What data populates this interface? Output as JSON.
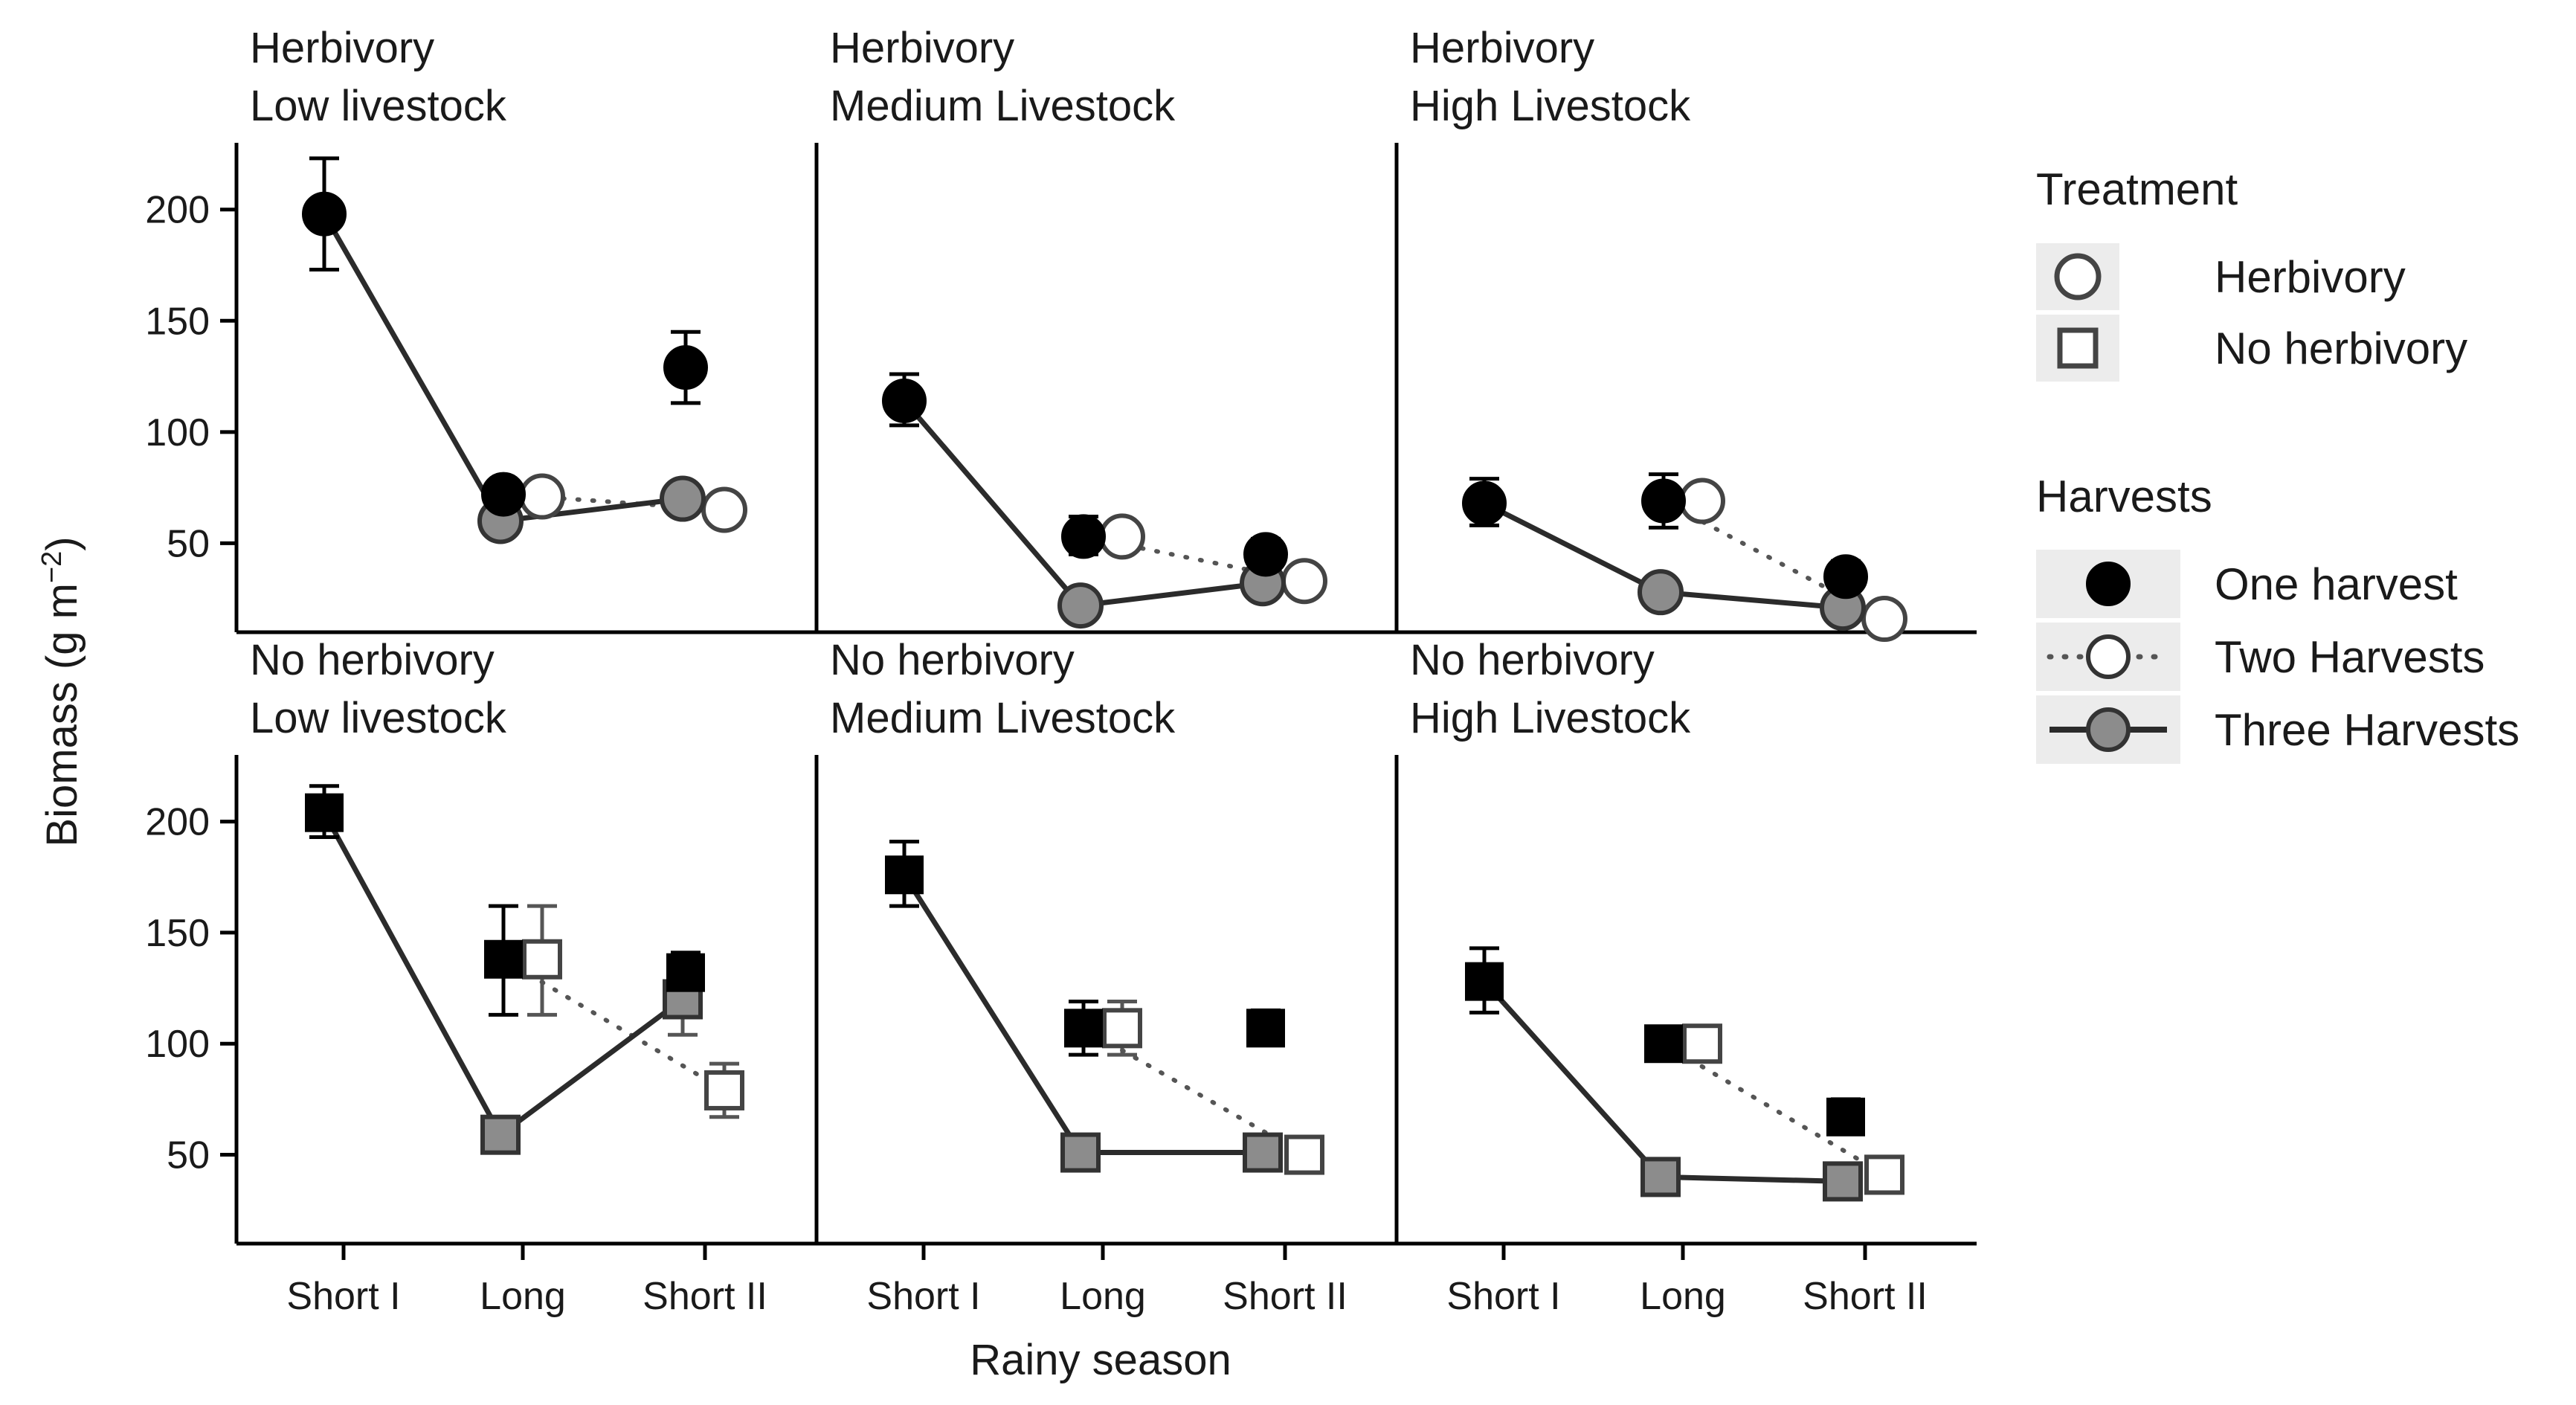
{
  "figure": {
    "ylabel_main": "Biomass (g m",
    "ylabel_sup": "−2",
    "ylabel_close": ")",
    "xlabel": "Rainy season"
  },
  "legend": {
    "treatment_title": "Treatment",
    "treatment_items": [
      {
        "label": "Herbivory",
        "shape": "circle"
      },
      {
        "label": "No herbivory",
        "shape": "square"
      }
    ],
    "harvests_title": "Harvests",
    "harvest_items": [
      {
        "label": "One harvest",
        "fill": "#000000",
        "line": "none"
      },
      {
        "label": "Two Harvests",
        "fill": "#ffffff",
        "line": "dotted"
      },
      {
        "label": "Three Harvests",
        "fill": "#8c8c8c",
        "line": "solid"
      }
    ]
  },
  "chart_data": {
    "type": "scatter",
    "facet_rows": [
      {
        "name": "Herbivory",
        "shape": "circle"
      },
      {
        "name": "No herbivory",
        "shape": "square"
      }
    ],
    "facet_cols": [
      "Low livestock",
      "Medium Livestock",
      "High Livestock"
    ],
    "x_categories": [
      "Short I",
      "Long",
      "Short II"
    ],
    "y_ticks": [
      50,
      100,
      150,
      200
    ],
    "ylim": [
      10,
      230
    ],
    "colors": {
      "one": "#000000",
      "two": "#ffffff",
      "three": "#8c8c8c",
      "line": "#2b2b2b"
    },
    "panels": [
      {
        "row": 0,
        "col": 0,
        "strip": [
          "Herbivory",
          "Low livestock"
        ],
        "one": [
          [
            0,
            198,
            173,
            223
          ],
          [
            1,
            72,
            66,
            78
          ],
          [
            2,
            129,
            113,
            145
          ]
        ],
        "two": [
          [
            1,
            71,
            null,
            null
          ],
          [
            2,
            65,
            null,
            null
          ]
        ],
        "three": [
          [
            1,
            60,
            null,
            null
          ],
          [
            2,
            70,
            null,
            null
          ]
        ]
      },
      {
        "row": 0,
        "col": 1,
        "strip": [
          "Herbivory",
          "Medium Livestock"
        ],
        "one": [
          [
            0,
            114,
            103,
            126
          ],
          [
            1,
            53,
            45,
            62
          ],
          [
            2,
            45,
            38,
            52
          ]
        ],
        "two": [
          [
            1,
            53,
            null,
            null
          ],
          [
            2,
            33,
            null,
            null
          ]
        ],
        "three": [
          [
            1,
            22,
            null,
            null
          ],
          [
            2,
            32,
            null,
            null
          ]
        ]
      },
      {
        "row": 0,
        "col": 2,
        "strip": [
          "Herbivory",
          "High Livestock"
        ],
        "one": [
          [
            0,
            68,
            58,
            79
          ],
          [
            1,
            69,
            57,
            81
          ],
          [
            2,
            35,
            28,
            42
          ]
        ],
        "two": [
          [
            1,
            69,
            null,
            null
          ],
          [
            2,
            16,
            null,
            null
          ]
        ],
        "three": [
          [
            1,
            28,
            null,
            null
          ],
          [
            2,
            21,
            null,
            null
          ]
        ]
      },
      {
        "row": 1,
        "col": 0,
        "strip": [
          "No herbivory",
          "Low livestock"
        ],
        "one": [
          [
            0,
            204,
            193,
            216
          ],
          [
            1,
            138,
            113,
            162
          ],
          [
            2,
            132,
            123,
            141
          ]
        ],
        "two": [
          [
            1,
            138,
            113,
            162
          ],
          [
            2,
            79,
            67,
            91
          ]
        ],
        "three": [
          [
            1,
            59,
            52,
            66
          ],
          [
            2,
            120,
            104,
            136
          ]
        ]
      },
      {
        "row": 1,
        "col": 1,
        "strip": [
          "No herbivory",
          "Medium Livestock"
        ],
        "one": [
          [
            0,
            176,
            162,
            191
          ],
          [
            1,
            107,
            95,
            119
          ],
          [
            2,
            107,
            100,
            115
          ]
        ],
        "two": [
          [
            1,
            107,
            95,
            119
          ],
          [
            2,
            50,
            null,
            null
          ]
        ],
        "three": [
          [
            1,
            51,
            null,
            null
          ],
          [
            2,
            51,
            null,
            null
          ]
        ]
      },
      {
        "row": 1,
        "col": 2,
        "strip": [
          "No herbivory",
          "High Livestock"
        ],
        "one": [
          [
            0,
            128,
            114,
            143
          ],
          [
            1,
            100,
            94,
            106
          ],
          [
            2,
            67,
            60,
            75
          ]
        ],
        "two": [
          [
            1,
            100,
            null,
            null
          ],
          [
            2,
            41,
            null,
            null
          ]
        ],
        "three": [
          [
            1,
            40,
            null,
            null
          ],
          [
            2,
            38,
            null,
            null
          ]
        ]
      }
    ]
  }
}
